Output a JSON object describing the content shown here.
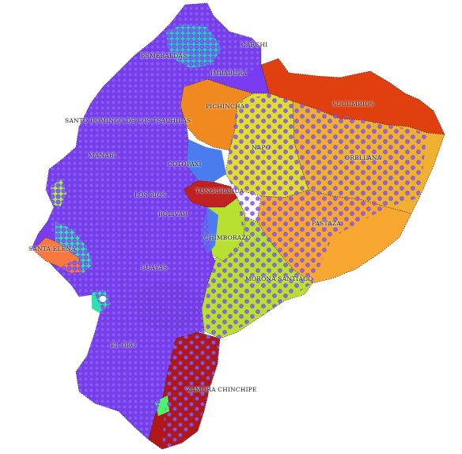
{
  "map": {
    "colors": {
      "ocean": "#ffffff",
      "points_fill": "#8a5cf5",
      "points_stroke": "#6a3cdc",
      "points_dark": "#3a0a5a",
      "borders": "#222222"
    },
    "provinces": [
      {
        "key": "esmeraldas",
        "label": "ESMERALDAS",
        "color": "#7a3cf0"
      },
      {
        "key": "carchi",
        "label": "CARCHI",
        "color": "#7a3cf0"
      },
      {
        "key": "imbabura",
        "label": "IMBABURA",
        "color": "#7a3cf0"
      },
      {
        "key": "sucumbios",
        "label": "SUCUMBIOS",
        "color": "#e04010"
      },
      {
        "key": "pichincha",
        "label": "PICHINCHA",
        "color": "#f08a20"
      },
      {
        "key": "santo_domingo",
        "label": "SANTO DOMINGO DE LOS TSACHILAS",
        "color": "#7a3cf0"
      },
      {
        "key": "napo",
        "label": "NAPO",
        "color": "#e0dc30"
      },
      {
        "key": "orellana",
        "label": "ORELLANA",
        "color": "#f0b030"
      },
      {
        "key": "manabi",
        "label": "MANABI",
        "color": "#7a3cf0"
      },
      {
        "key": "cotopaxi",
        "label": "COTOPAXI",
        "color": "#4a7cf0"
      },
      {
        "key": "los_rios",
        "label": "LOS RIOS",
        "color": "#7a3cf0"
      },
      {
        "key": "tungurahua",
        "label": "TUNGURAHUA",
        "color": "#c02020"
      },
      {
        "key": "bolivar",
        "label": "BOLIVAR",
        "color": "#7a3cf0"
      },
      {
        "key": "pastaza",
        "label": "PASTAZA",
        "color": "#f8a830"
      },
      {
        "key": "santa_elena",
        "label": "SANTA ELENA",
        "color": "#f87840"
      },
      {
        "key": "chimborazo",
        "label": "CHIMBORAZO",
        "color": "#b8e030"
      },
      {
        "key": "guayas",
        "label": "GUAYAS",
        "color": "#7a3cf0"
      },
      {
        "key": "morona_santiago",
        "label": "MORONA SANTIAGO",
        "color": "#b8e030"
      },
      {
        "key": "el_oro",
        "label": "EL ORO",
        "color": "#7a3cf0"
      },
      {
        "key": "zamora_chinchipe",
        "label": "ZAMORA CHINCHIPE",
        "color": "#b01818"
      }
    ]
  }
}
